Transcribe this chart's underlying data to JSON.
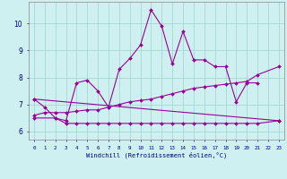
{
  "xlabel": "Windchill (Refroidissement éolien,°C)",
  "background_color": "#cff0f0",
  "grid_color": "#a0d0d0",
  "line_color": "#990099",
  "x_ticks": [
    0,
    1,
    2,
    3,
    4,
    5,
    6,
    7,
    8,
    9,
    10,
    11,
    12,
    13,
    14,
    15,
    16,
    17,
    18,
    19,
    20,
    21,
    22,
    23
  ],
  "ylim": [
    5.7,
    10.8
  ],
  "xlim": [
    -0.5,
    23.5
  ],
  "series": [
    {
      "x": [
        0,
        1,
        2,
        3,
        4,
        5,
        6,
        7,
        8,
        9,
        10,
        11,
        12,
        13,
        14,
        15,
        16,
        17,
        18,
        19,
        20,
        21
      ],
      "y": [
        7.2,
        6.9,
        6.5,
        6.4,
        7.8,
        7.9,
        7.5,
        6.9,
        8.3,
        8.7,
        9.2,
        10.5,
        9.9,
        8.5,
        9.7,
        8.65,
        8.65,
        8.4,
        8.4,
        7.1,
        7.8,
        7.8
      ]
    },
    {
      "x": [
        0,
        23
      ],
      "y": [
        7.2,
        6.4
      ]
    },
    {
      "x": [
        0,
        2,
        3,
        4,
        5,
        6,
        7,
        8,
        9,
        10,
        11,
        12,
        13,
        14,
        15,
        16,
        17,
        18,
        19,
        20,
        21,
        23
      ],
      "y": [
        6.5,
        6.5,
        6.3,
        6.3,
        6.3,
        6.3,
        6.3,
        6.3,
        6.3,
        6.3,
        6.3,
        6.3,
        6.3,
        6.3,
        6.3,
        6.3,
        6.3,
        6.3,
        6.3,
        6.3,
        6.3,
        6.4
      ]
    },
    {
      "x": [
        0,
        1,
        2,
        3,
        4,
        5,
        6,
        7,
        8,
        9,
        10,
        11,
        12,
        13,
        14,
        15,
        16,
        17,
        18,
        19,
        20,
        21,
        23
      ],
      "y": [
        6.6,
        6.7,
        6.7,
        6.7,
        6.75,
        6.8,
        6.8,
        6.9,
        7.0,
        7.1,
        7.15,
        7.2,
        7.3,
        7.4,
        7.5,
        7.6,
        7.65,
        7.7,
        7.75,
        7.8,
        7.85,
        8.1,
        8.4
      ]
    }
  ]
}
